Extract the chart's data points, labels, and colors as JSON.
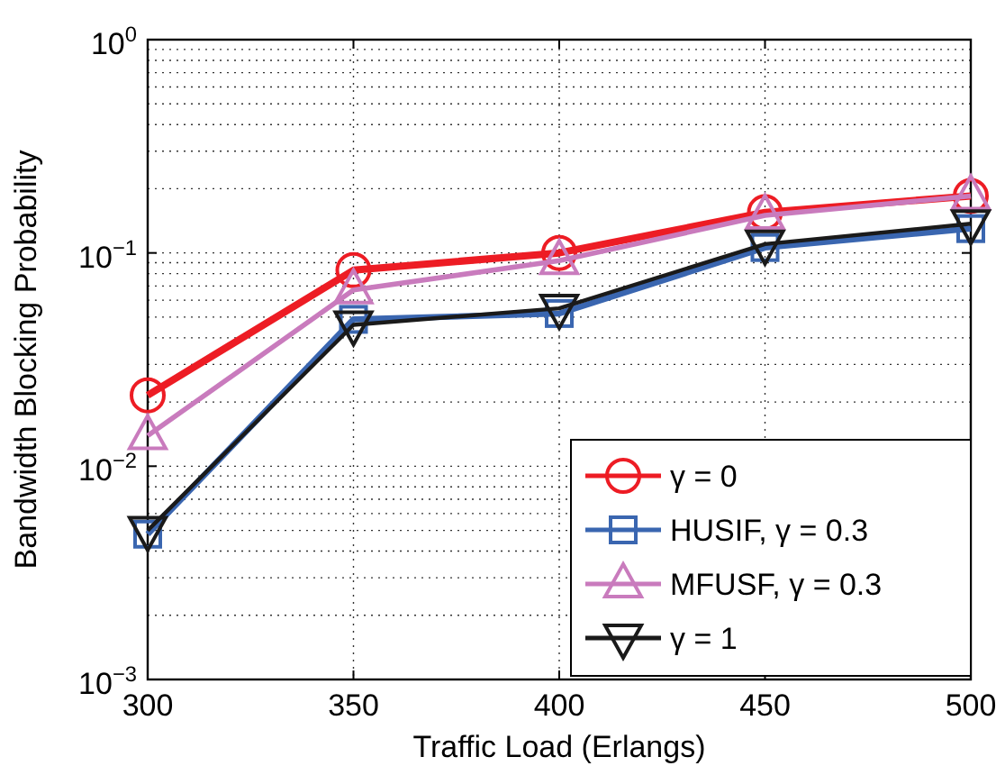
{
  "chart_data": {
    "type": "line",
    "xlabel": "Traffic Load (Erlangs)",
    "ylabel": "Bandwidth Blocking Probability",
    "x": [
      300,
      350,
      400,
      450,
      500
    ],
    "xlim": [
      300,
      500
    ],
    "xticks": [
      300,
      350,
      400,
      450,
      500
    ],
    "ylim": [
      0.001,
      1
    ],
    "yticks": [
      {
        "value": 0.001,
        "label": "10$^{−3}$"
      },
      {
        "value": 0.01,
        "label": "10$^{−2}$"
      },
      {
        "value": 0.1,
        "label": "10$^{−1}$"
      },
      {
        "value": 1,
        "label": "10$^{0}$"
      }
    ],
    "log": "y",
    "grid": true,
    "legend": "bottom right",
    "line_style": "solid",
    "series": [
      {
        "name": "γ = 0",
        "color": "#ed1c24",
        "marker": "circle",
        "values": [
          0.0215,
          0.083,
          0.1,
          0.155,
          0.185
        ]
      },
      {
        "name": "HUSIF, γ = 0.3",
        "color": "#3a66b0",
        "marker": "square",
        "values": [
          0.0048,
          0.0488,
          0.052,
          0.106,
          0.13
        ]
      },
      {
        "name": "MFUSF, γ = 0.3",
        "color": "#c97bbd",
        "marker": "triangle",
        "values": [
          0.0139,
          0.067,
          0.092,
          0.15,
          0.185
        ]
      },
      {
        "name": "γ = 1",
        "color": "#1a1a1a",
        "marker": "triangle-down",
        "values": [
          0.005,
          0.046,
          0.055,
          0.11,
          0.137
        ]
      }
    ]
  }
}
